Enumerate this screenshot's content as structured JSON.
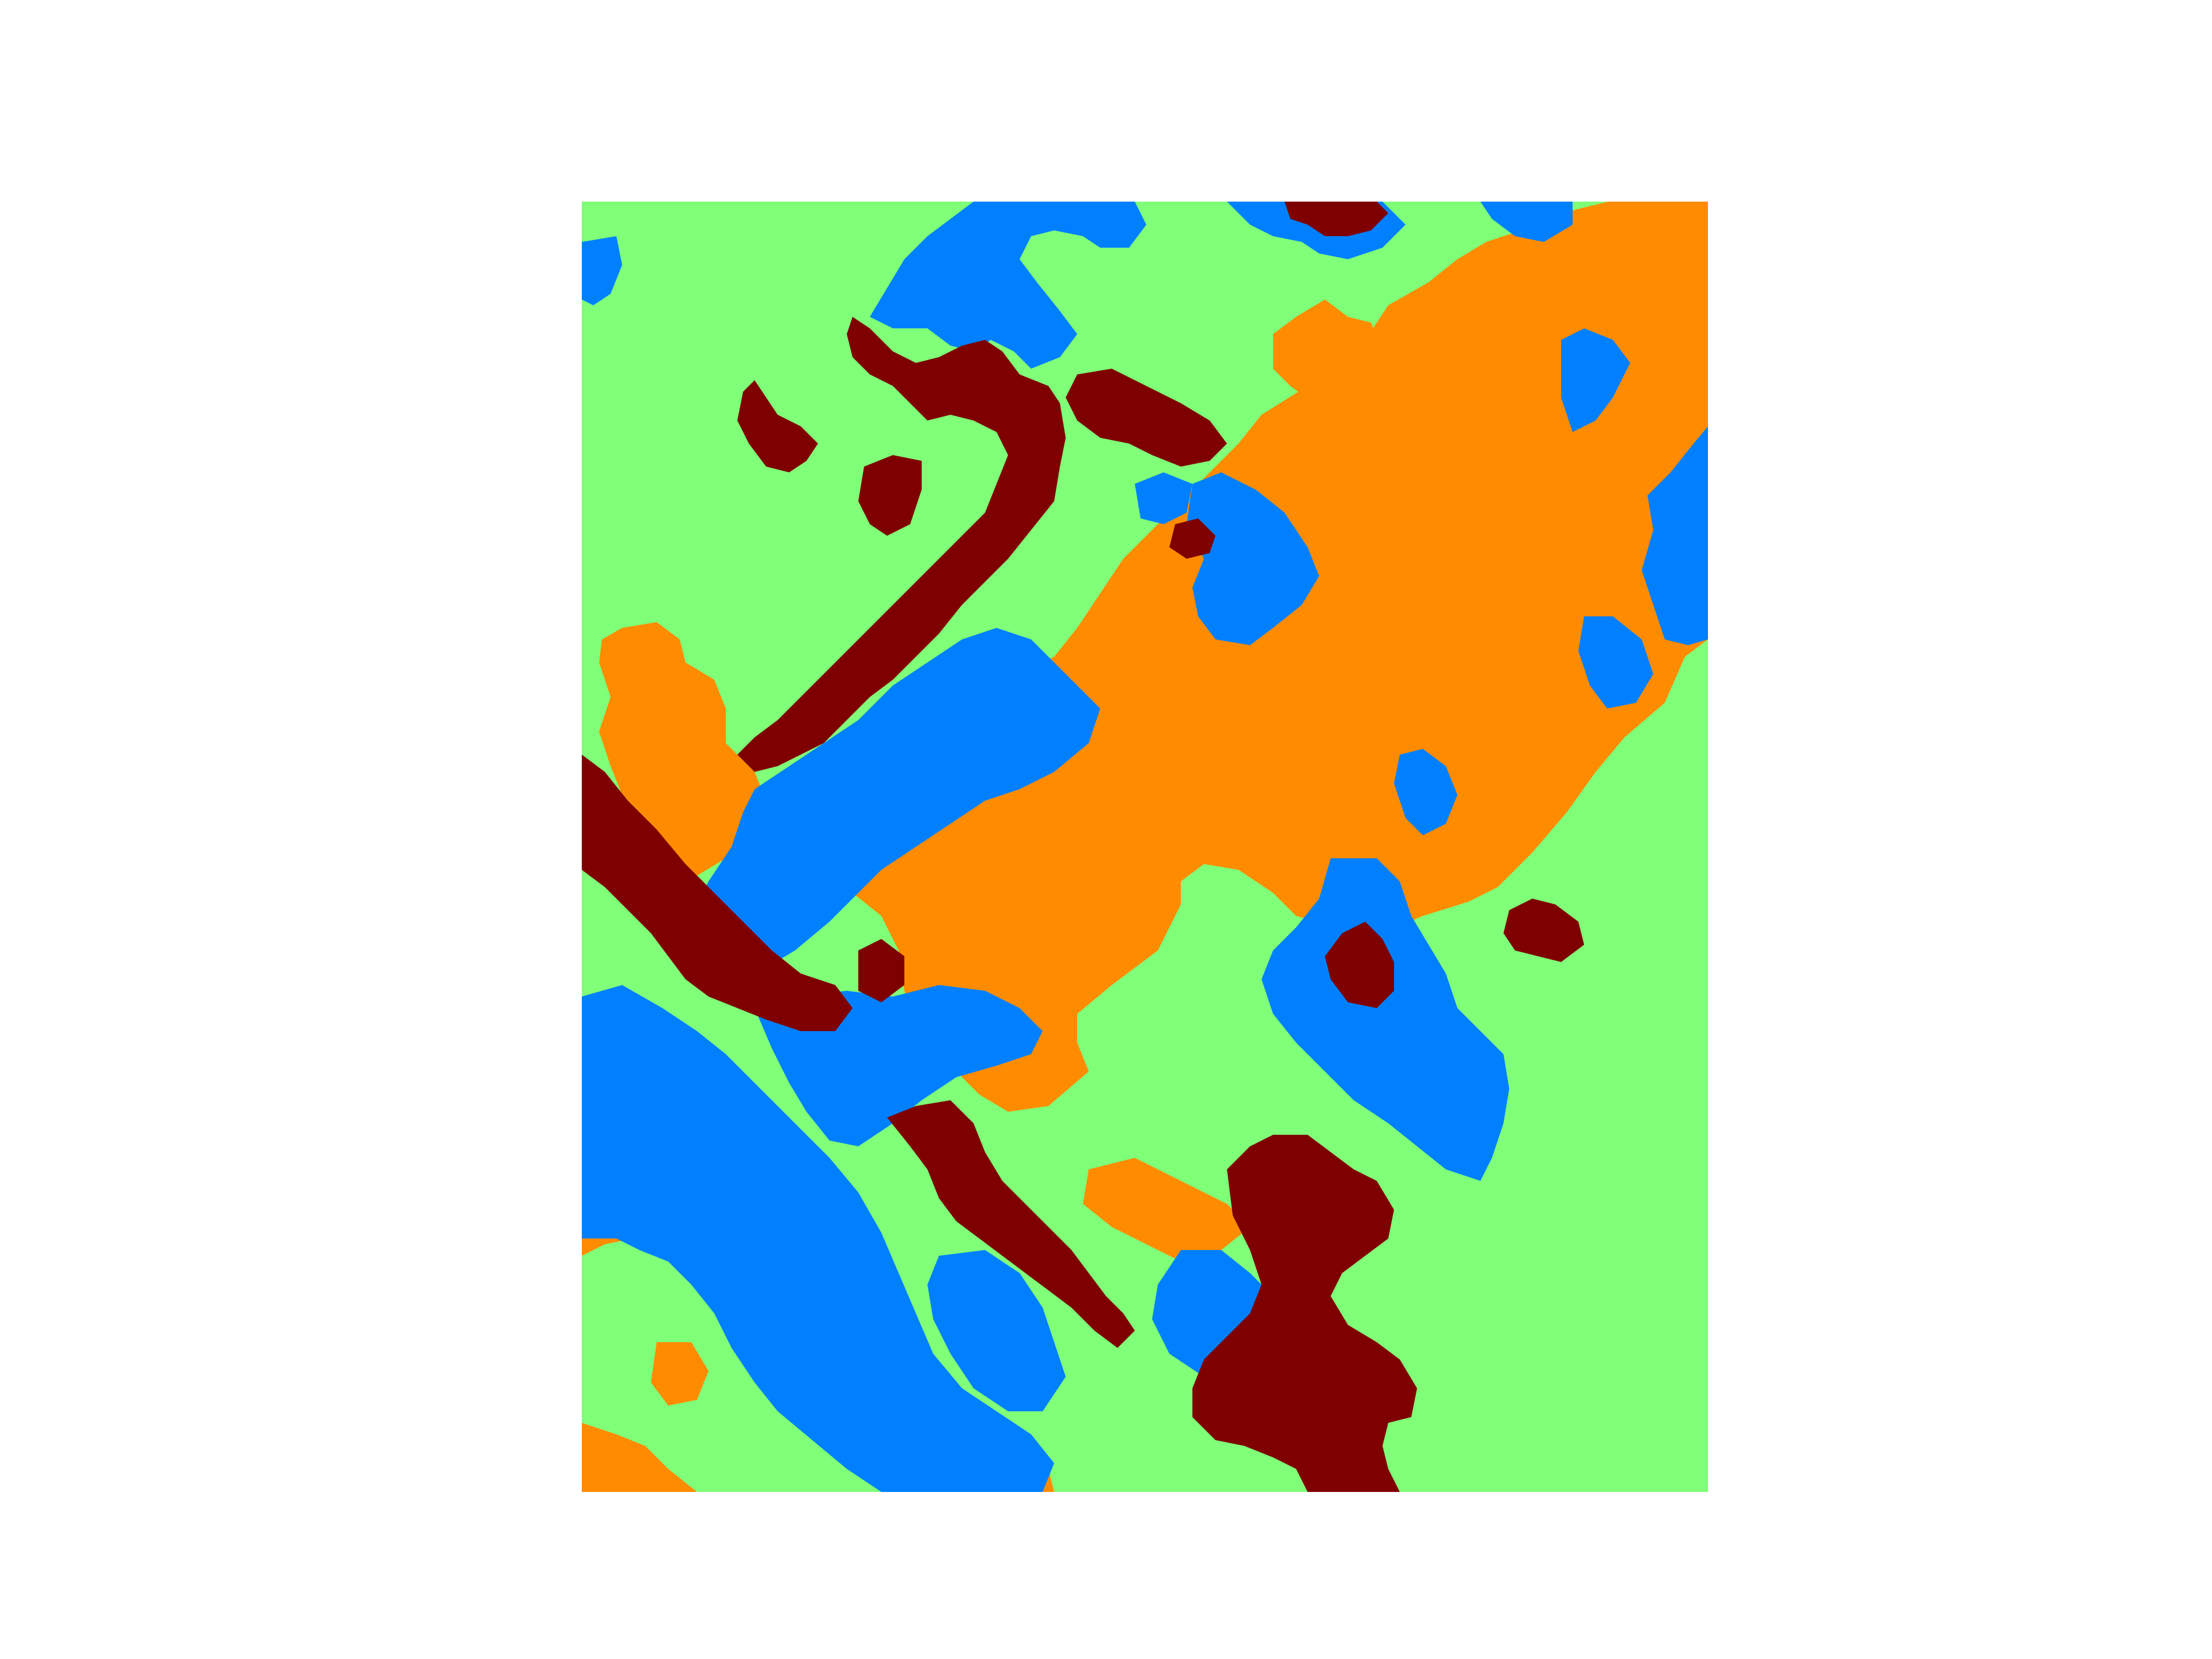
{
  "colors": {
    "background": "#ffffff",
    "class_green": "#80ff78",
    "class_blue": "#0080ff",
    "class_orange": "#ff8c00",
    "class_darkred": "#7f0000"
  },
  "map": {
    "kind": "categorical segmentation map",
    "classes": [
      "class_green",
      "class_blue",
      "class_orange",
      "class_darkred"
    ],
    "base_class": "class_green",
    "axes_visible": false,
    "labels_visible": false
  }
}
